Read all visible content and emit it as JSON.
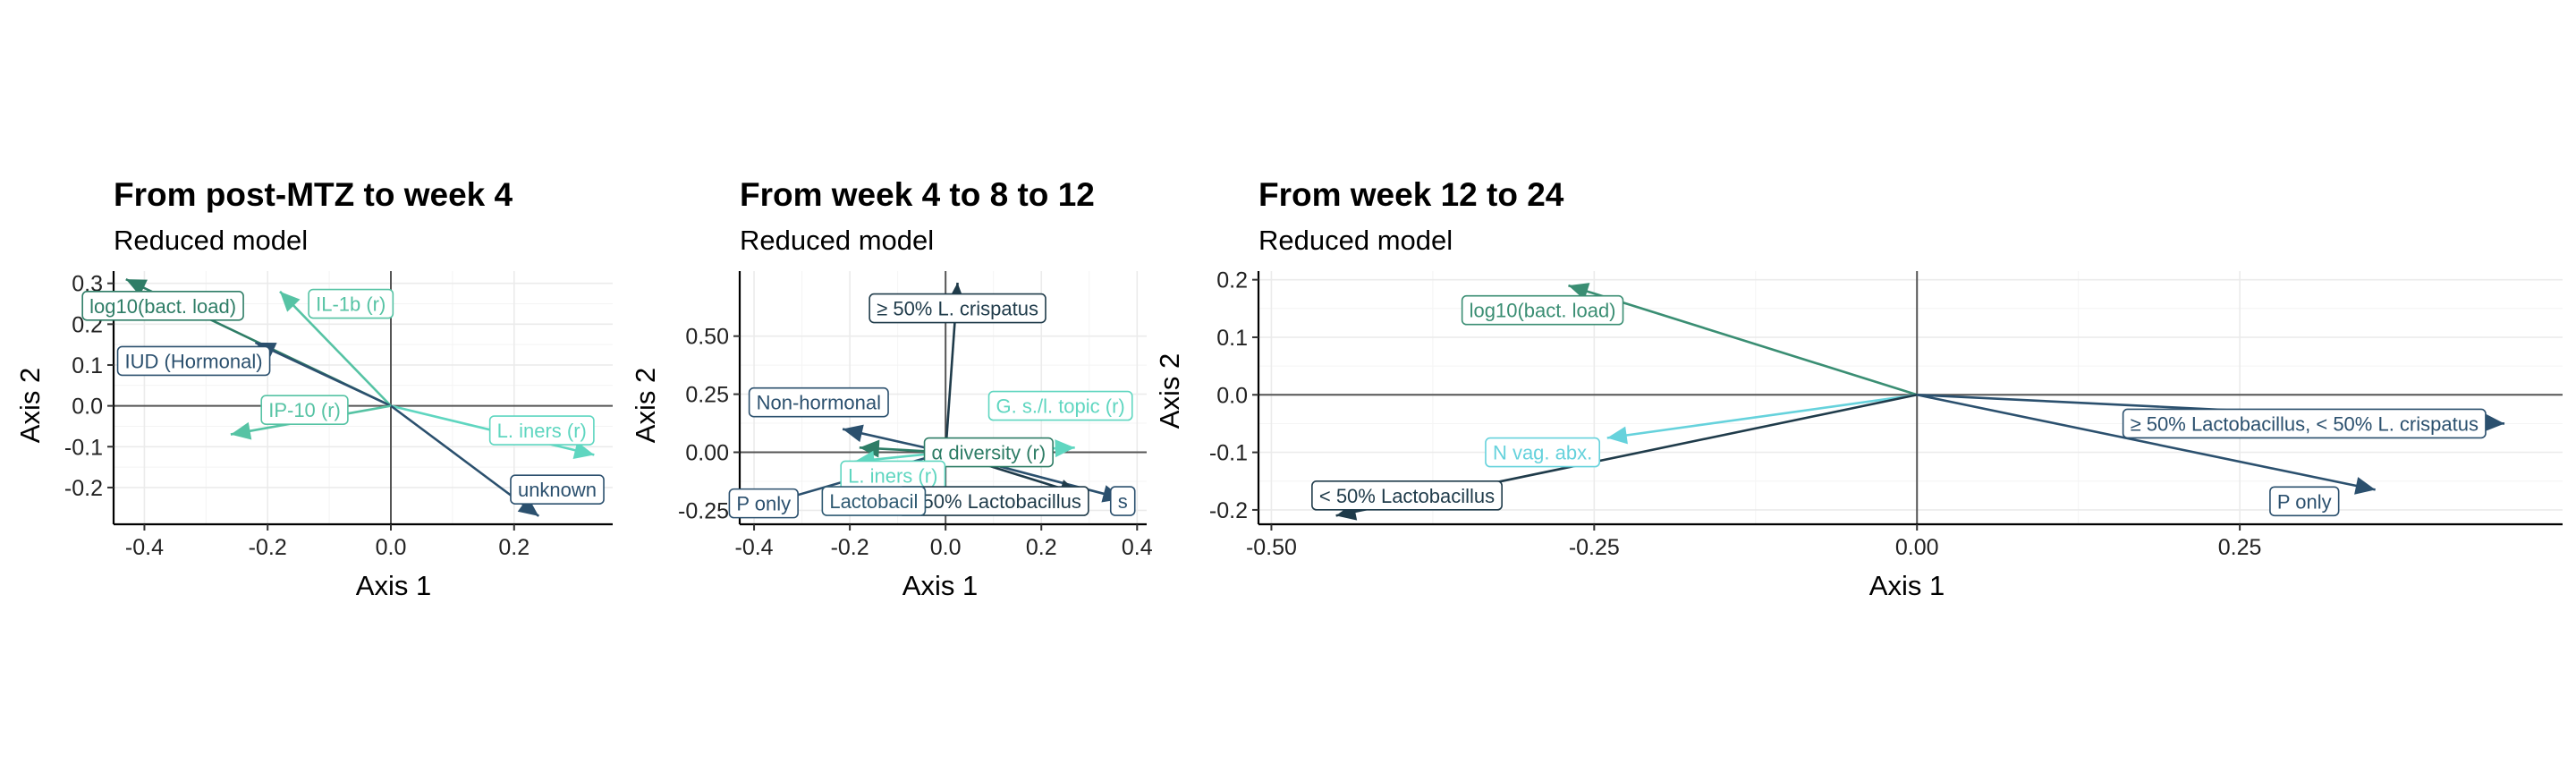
{
  "colors": {
    "navy": "#2b506e",
    "slate": "#2f5a72",
    "teal": "#2e7d66",
    "green": "#3a8e73",
    "mint": "#56c3a4",
    "aqua": "#5fd6c0",
    "cyan": "#66d2dc",
    "dark": "#1f3b4a"
  },
  "chart_data": [
    {
      "type": "biplot",
      "title": "From post-MTZ to week 4",
      "subtitle": "Reduced model",
      "xlabel": "Axis 1",
      "ylabel": "Axis 2",
      "xlim": [
        -0.45,
        0.36
      ],
      "ylim": [
        -0.29,
        0.33
      ],
      "xticks": [
        -0.4,
        -0.2,
        0.0,
        0.2
      ],
      "xtick_labels": [
        "-0.4",
        "-0.2",
        "0.0",
        "0.2"
      ],
      "yticks": [
        -0.2,
        -0.1,
        0.0,
        0.1,
        0.2,
        0.3
      ],
      "ytick_labels": [
        "-0.2",
        "-0.1",
        "0.0",
        "0.1",
        "0.2",
        "0.3"
      ],
      "grid": true,
      "vectors": [
        {
          "label": "log10(bact. load)",
          "x": -0.43,
          "y": 0.31,
          "lx": -0.37,
          "ly": 0.245,
          "color": "teal"
        },
        {
          "label": "IL-1b (r)",
          "x": -0.18,
          "y": 0.28,
          "lx": -0.065,
          "ly": 0.25,
          "color": "mint"
        },
        {
          "label": "IUD (Hormonal)",
          "x": -0.22,
          "y": 0.155,
          "lx": -0.32,
          "ly": 0.11,
          "color": "navy"
        },
        {
          "label": "IP-10 (r)",
          "x": -0.26,
          "y": -0.07,
          "lx": -0.14,
          "ly": -0.01,
          "color": "mint"
        },
        {
          "label": "L. iners (r)",
          "x": 0.33,
          "y": -0.12,
          "lx": 0.245,
          "ly": -0.06,
          "color": "aqua"
        },
        {
          "label": "unknown",
          "x": 0.24,
          "y": -0.27,
          "lx": 0.27,
          "ly": -0.205,
          "color": "navy"
        }
      ]
    },
    {
      "type": "biplot",
      "title": "From week 4 to 8 to 12",
      "subtitle": "Reduced model",
      "xlabel": "Axis 1",
      "ylabel": "Axis 2",
      "xlim": [
        -0.43,
        0.42
      ],
      "ylim": [
        -0.31,
        0.78
      ],
      "xticks": [
        -0.4,
        -0.2,
        0.0,
        0.2,
        0.4
      ],
      "xtick_labels": [
        "-0.4",
        "-0.2",
        "0.0",
        "0.2",
        "0.4"
      ],
      "yticks": [
        -0.25,
        0.0,
        0.25,
        0.5
      ],
      "ytick_labels": [
        "-0.25",
        "0.00",
        "0.25",
        "0.50"
      ],
      "grid": true,
      "vectors": [
        {
          "label": "≥ 50% L. crispatus",
          "x": 0.025,
          "y": 0.73,
          "lx": 0.025,
          "ly": 0.62,
          "color": "dark"
        },
        {
          "label": "Non-hormonal",
          "x": -0.215,
          "y": 0.1,
          "lx": -0.265,
          "ly": 0.215,
          "color": "navy"
        },
        {
          "label": "G. s./l. topic (r)",
          "x": 0.27,
          "y": 0.02,
          "lx": 0.24,
          "ly": 0.2,
          "color": "aqua"
        },
        {
          "label": "α diversity (r)",
          "x": -0.18,
          "y": 0.02,
          "lx": 0.09,
          "ly": 0.0,
          "color": "teal"
        },
        {
          "label": "L. iners (r)",
          "x": -0.19,
          "y": -0.04,
          "lx": -0.11,
          "ly": -0.1,
          "color": "aqua"
        },
        {
          "label": "s",
          "x": 0.37,
          "y": -0.2,
          "lx": 0.37,
          "ly": -0.21,
          "color": "navy"
        },
        {
          "label": "< 50% Lactobacillus",
          "x": 0.28,
          "y": -0.18,
          "lx": 0.1,
          "ly": -0.21,
          "color": "dark"
        },
        {
          "label": "Lactobacil",
          "x": -0.16,
          "y": -0.19,
          "lx": -0.15,
          "ly": -0.21,
          "color": "slate"
        },
        {
          "label": "P only",
          "x": -0.42,
          "y": -0.25,
          "lx": -0.38,
          "ly": -0.22,
          "color": "navy"
        }
      ]
    },
    {
      "type": "biplot",
      "title": "From week 12 to 24",
      "subtitle": "Reduced model",
      "xlabel": "Axis 1",
      "ylabel": "Axis 2",
      "xlim": [
        -0.51,
        0.5
      ],
      "ylim": [
        -0.225,
        0.215
      ],
      "xticks": [
        -0.5,
        -0.25,
        0.0,
        0.25
      ],
      "xtick_labels": [
        "-0.50",
        "-0.25",
        "0.00",
        "0.25"
      ],
      "yticks": [
        -0.2,
        -0.1,
        0.0,
        0.1,
        0.2
      ],
      "ytick_labels": [
        "-0.2",
        "-0.1",
        "0.0",
        "0.1",
        "0.2"
      ],
      "grid": true,
      "vectors": [
        {
          "label": "log10(bact. load)",
          "x": -0.27,
          "y": 0.19,
          "lx": -0.29,
          "ly": 0.147,
          "color": "green"
        },
        {
          "label": "≥ 50% Lactobacillus, < 50% L. crispatus",
          "x": 0.455,
          "y": -0.05,
          "lx": 0.3,
          "ly": -0.05,
          "color": "navy"
        },
        {
          "label": "N vag. abx.",
          "x": -0.24,
          "y": -0.075,
          "lx": -0.29,
          "ly": -0.1,
          "color": "cyan"
        },
        {
          "label": "< 50% Lactobacillus",
          "x": -0.45,
          "y": -0.21,
          "lx": -0.395,
          "ly": -0.175,
          "color": "dark"
        },
        {
          "label": "P only",
          "x": 0.355,
          "y": -0.165,
          "lx": 0.3,
          "ly": -0.185,
          "color": "navy"
        }
      ]
    }
  ]
}
